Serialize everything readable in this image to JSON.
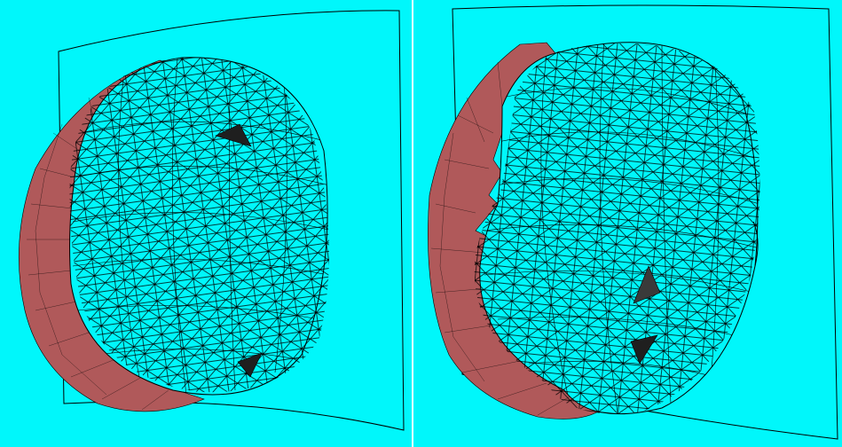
{
  "figure": {
    "panels": [
      {
        "id": "left-view",
        "background": "#00f7fb",
        "mesh_color": "#000000",
        "shell_color": "#b0595a",
        "hidden_face_color": "#1f1f1f"
      },
      {
        "id": "right-view",
        "background": "#00f7fb",
        "mesh_color": "#000000",
        "shell_color": "#b0595a",
        "hidden_face_color": "#3a3a3a"
      }
    ]
  }
}
